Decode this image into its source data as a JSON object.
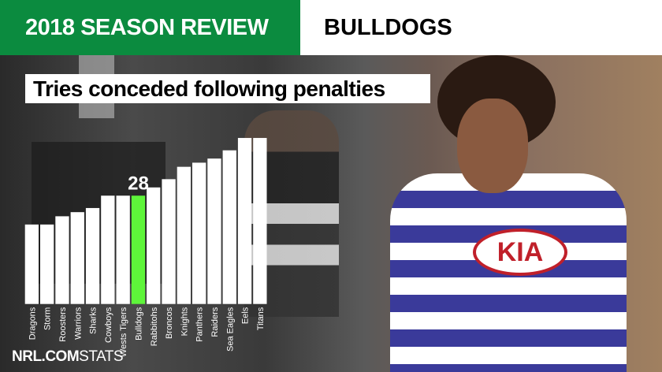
{
  "header": {
    "season_label": "2018 SEASON REVIEW",
    "team": "BULLDOGS"
  },
  "colors": {
    "brand_green": "#0b8b3f",
    "highlight": "#5ef53a",
    "bar": "#ffffff"
  },
  "logo": {
    "bold": "NRL.COM",
    "light": "STATS"
  },
  "chart_data": {
    "type": "bar",
    "title": "Tries conceded following penalties",
    "categories": [
      "Dragons",
      "Storm",
      "Roosters",
      "Warriors",
      "Sharks",
      "Cowboys",
      "Wests Tigers",
      "Bulldogs",
      "Rabbitohs",
      "Broncos",
      "Knights",
      "Panthers",
      "Raiders",
      "Sea Eagles",
      "Eels",
      "Titans"
    ],
    "values": [
      21,
      21,
      23,
      24,
      25,
      28,
      28,
      28,
      30,
      32,
      35,
      36,
      37,
      39,
      42,
      42
    ],
    "highlight": "Bulldogs",
    "data_labels": [
      {
        "category": "Bulldogs",
        "text": "28"
      }
    ],
    "grid": false
  }
}
